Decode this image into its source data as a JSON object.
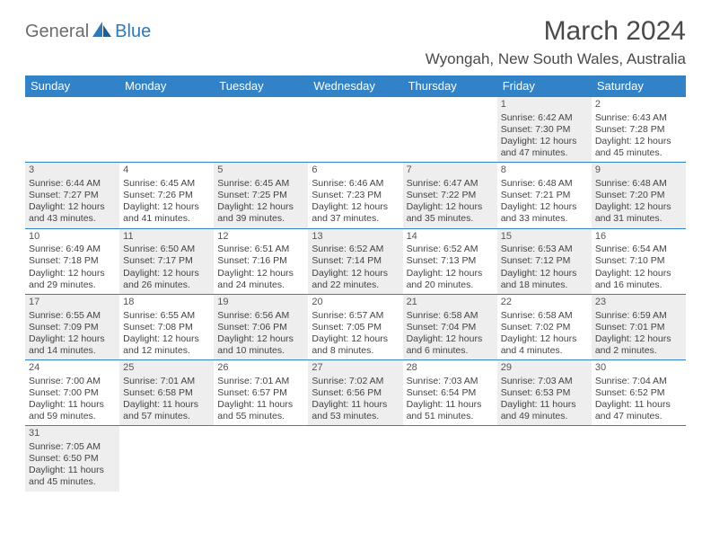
{
  "brand": {
    "part1": "General",
    "part2": "Blue"
  },
  "title": "March 2024",
  "location": "Wyongah, New South Wales, Australia",
  "colors": {
    "header_bg": "#3182c7",
    "header_text": "#ffffff",
    "shaded_bg": "#eeeeee",
    "cell_text": "#444444",
    "logo_gray": "#6c6c6c",
    "logo_blue": "#2f79b6"
  },
  "day_headers": [
    "Sunday",
    "Monday",
    "Tuesday",
    "Wednesday",
    "Thursday",
    "Friday",
    "Saturday"
  ],
  "weeks": [
    [
      {
        "empty": true
      },
      {
        "empty": true
      },
      {
        "empty": true
      },
      {
        "empty": true
      },
      {
        "empty": true
      },
      {
        "day": "1",
        "shaded": true,
        "sunrise": "Sunrise: 6:42 AM",
        "sunset": "Sunset: 7:30 PM",
        "daylight1": "Daylight: 12 hours",
        "daylight2": "and 47 minutes."
      },
      {
        "day": "2",
        "shaded": false,
        "sunrise": "Sunrise: 6:43 AM",
        "sunset": "Sunset: 7:28 PM",
        "daylight1": "Daylight: 12 hours",
        "daylight2": "and 45 minutes."
      }
    ],
    [
      {
        "day": "3",
        "shaded": true,
        "sunrise": "Sunrise: 6:44 AM",
        "sunset": "Sunset: 7:27 PM",
        "daylight1": "Daylight: 12 hours",
        "daylight2": "and 43 minutes."
      },
      {
        "day": "4",
        "shaded": false,
        "sunrise": "Sunrise: 6:45 AM",
        "sunset": "Sunset: 7:26 PM",
        "daylight1": "Daylight: 12 hours",
        "daylight2": "and 41 minutes."
      },
      {
        "day": "5",
        "shaded": true,
        "sunrise": "Sunrise: 6:45 AM",
        "sunset": "Sunset: 7:25 PM",
        "daylight1": "Daylight: 12 hours",
        "daylight2": "and 39 minutes."
      },
      {
        "day": "6",
        "shaded": false,
        "sunrise": "Sunrise: 6:46 AM",
        "sunset": "Sunset: 7:23 PM",
        "daylight1": "Daylight: 12 hours",
        "daylight2": "and 37 minutes."
      },
      {
        "day": "7",
        "shaded": true,
        "sunrise": "Sunrise: 6:47 AM",
        "sunset": "Sunset: 7:22 PM",
        "daylight1": "Daylight: 12 hours",
        "daylight2": "and 35 minutes."
      },
      {
        "day": "8",
        "shaded": false,
        "sunrise": "Sunrise: 6:48 AM",
        "sunset": "Sunset: 7:21 PM",
        "daylight1": "Daylight: 12 hours",
        "daylight2": "and 33 minutes."
      },
      {
        "day": "9",
        "shaded": true,
        "sunrise": "Sunrise: 6:48 AM",
        "sunset": "Sunset: 7:20 PM",
        "daylight1": "Daylight: 12 hours",
        "daylight2": "and 31 minutes."
      }
    ],
    [
      {
        "day": "10",
        "shaded": false,
        "sunrise": "Sunrise: 6:49 AM",
        "sunset": "Sunset: 7:18 PM",
        "daylight1": "Daylight: 12 hours",
        "daylight2": "and 29 minutes."
      },
      {
        "day": "11",
        "shaded": true,
        "sunrise": "Sunrise: 6:50 AM",
        "sunset": "Sunset: 7:17 PM",
        "daylight1": "Daylight: 12 hours",
        "daylight2": "and 26 minutes."
      },
      {
        "day": "12",
        "shaded": false,
        "sunrise": "Sunrise: 6:51 AM",
        "sunset": "Sunset: 7:16 PM",
        "daylight1": "Daylight: 12 hours",
        "daylight2": "and 24 minutes."
      },
      {
        "day": "13",
        "shaded": true,
        "sunrise": "Sunrise: 6:52 AM",
        "sunset": "Sunset: 7:14 PM",
        "daylight1": "Daylight: 12 hours",
        "daylight2": "and 22 minutes."
      },
      {
        "day": "14",
        "shaded": false,
        "sunrise": "Sunrise: 6:52 AM",
        "sunset": "Sunset: 7:13 PM",
        "daylight1": "Daylight: 12 hours",
        "daylight2": "and 20 minutes."
      },
      {
        "day": "15",
        "shaded": true,
        "sunrise": "Sunrise: 6:53 AM",
        "sunset": "Sunset: 7:12 PM",
        "daylight1": "Daylight: 12 hours",
        "daylight2": "and 18 minutes."
      },
      {
        "day": "16",
        "shaded": false,
        "sunrise": "Sunrise: 6:54 AM",
        "sunset": "Sunset: 7:10 PM",
        "daylight1": "Daylight: 12 hours",
        "daylight2": "and 16 minutes."
      }
    ],
    [
      {
        "day": "17",
        "shaded": true,
        "sunrise": "Sunrise: 6:55 AM",
        "sunset": "Sunset: 7:09 PM",
        "daylight1": "Daylight: 12 hours",
        "daylight2": "and 14 minutes."
      },
      {
        "day": "18",
        "shaded": false,
        "sunrise": "Sunrise: 6:55 AM",
        "sunset": "Sunset: 7:08 PM",
        "daylight1": "Daylight: 12 hours",
        "daylight2": "and 12 minutes."
      },
      {
        "day": "19",
        "shaded": true,
        "sunrise": "Sunrise: 6:56 AM",
        "sunset": "Sunset: 7:06 PM",
        "daylight1": "Daylight: 12 hours",
        "daylight2": "and 10 minutes."
      },
      {
        "day": "20",
        "shaded": false,
        "sunrise": "Sunrise: 6:57 AM",
        "sunset": "Sunset: 7:05 PM",
        "daylight1": "Daylight: 12 hours",
        "daylight2": "and 8 minutes."
      },
      {
        "day": "21",
        "shaded": true,
        "sunrise": "Sunrise: 6:58 AM",
        "sunset": "Sunset: 7:04 PM",
        "daylight1": "Daylight: 12 hours",
        "daylight2": "and 6 minutes."
      },
      {
        "day": "22",
        "shaded": false,
        "sunrise": "Sunrise: 6:58 AM",
        "sunset": "Sunset: 7:02 PM",
        "daylight1": "Daylight: 12 hours",
        "daylight2": "and 4 minutes."
      },
      {
        "day": "23",
        "shaded": true,
        "sunrise": "Sunrise: 6:59 AM",
        "sunset": "Sunset: 7:01 PM",
        "daylight1": "Daylight: 12 hours",
        "daylight2": "and 2 minutes."
      }
    ],
    [
      {
        "day": "24",
        "shaded": false,
        "sunrise": "Sunrise: 7:00 AM",
        "sunset": "Sunset: 7:00 PM",
        "daylight1": "Daylight: 11 hours",
        "daylight2": "and 59 minutes."
      },
      {
        "day": "25",
        "shaded": true,
        "sunrise": "Sunrise: 7:01 AM",
        "sunset": "Sunset: 6:58 PM",
        "daylight1": "Daylight: 11 hours",
        "daylight2": "and 57 minutes."
      },
      {
        "day": "26",
        "shaded": false,
        "sunrise": "Sunrise: 7:01 AM",
        "sunset": "Sunset: 6:57 PM",
        "daylight1": "Daylight: 11 hours",
        "daylight2": "and 55 minutes."
      },
      {
        "day": "27",
        "shaded": true,
        "sunrise": "Sunrise: 7:02 AM",
        "sunset": "Sunset: 6:56 PM",
        "daylight1": "Daylight: 11 hours",
        "daylight2": "and 53 minutes."
      },
      {
        "day": "28",
        "shaded": false,
        "sunrise": "Sunrise: 7:03 AM",
        "sunset": "Sunset: 6:54 PM",
        "daylight1": "Daylight: 11 hours",
        "daylight2": "and 51 minutes."
      },
      {
        "day": "29",
        "shaded": true,
        "sunrise": "Sunrise: 7:03 AM",
        "sunset": "Sunset: 6:53 PM",
        "daylight1": "Daylight: 11 hours",
        "daylight2": "and 49 minutes."
      },
      {
        "day": "30",
        "shaded": false,
        "sunrise": "Sunrise: 7:04 AM",
        "sunset": "Sunset: 6:52 PM",
        "daylight1": "Daylight: 11 hours",
        "daylight2": "and 47 minutes."
      }
    ],
    [
      {
        "day": "31",
        "shaded": true,
        "sunrise": "Sunrise: 7:05 AM",
        "sunset": "Sunset: 6:50 PM",
        "daylight1": "Daylight: 11 hours",
        "daylight2": "and 45 minutes."
      },
      {
        "empty": true
      },
      {
        "empty": true
      },
      {
        "empty": true
      },
      {
        "empty": true
      },
      {
        "empty": true
      },
      {
        "empty": true
      }
    ]
  ]
}
